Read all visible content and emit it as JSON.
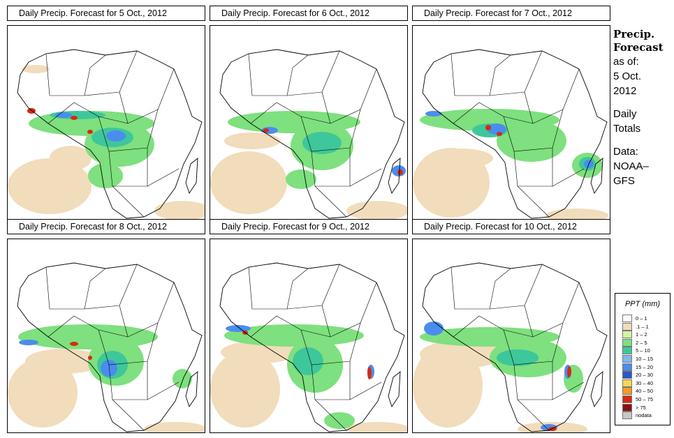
{
  "panels": [
    {
      "title": "Daily Precip. Forecast for  5 Oct., 2012"
    },
    {
      "title": "Daily Precip. Forecast for  6 Oct., 2012"
    },
    {
      "title": "Daily Precip. Forecast for  7 Oct., 2012"
    },
    {
      "title": "Daily Precip. Forecast for  8 Oct., 2012"
    },
    {
      "title": "Daily Precip. Forecast for  9 Oct., 2012"
    },
    {
      "title": "Daily Precip. Forecast for  10 Oct., 2012"
    }
  ],
  "sidebar": {
    "title1": "Precip.",
    "title2": "Forecast",
    "asof": "as of:",
    "date1": "5 Oct.",
    "date2": "2012",
    "daily1": "Daily",
    "daily2": "Totals",
    "data1": "Data:",
    "data2": "NOAA–",
    "data3": "GFS"
  },
  "legend": {
    "title": "PPT (mm)",
    "items": [
      {
        "label": "0 – 1",
        "color": "#fcfcfc"
      },
      {
        "label": ".1 – 1",
        "color": "#f1dcbb"
      },
      {
        "label": "1 – 2",
        "color": "#d4f5a3"
      },
      {
        "label": "2 – 5",
        "color": "#7ee07e"
      },
      {
        "label": "5 – 10",
        "color": "#3ec79a"
      },
      {
        "label": "10 – 15",
        "color": "#7fb7f2"
      },
      {
        "label": "15 – 20",
        "color": "#4a8ded"
      },
      {
        "label": "20 – 30",
        "color": "#2a55cc"
      },
      {
        "label": "30 – 40",
        "color": "#f5d65a"
      },
      {
        "label": "40 – 50",
        "color": "#f59b23"
      },
      {
        "label": "50 – 75",
        "color": "#d62a12"
      },
      {
        "label": "> 75",
        "color": "#8a1010"
      },
      {
        "label": "nodata",
        "color": "#c8c8c8"
      }
    ]
  },
  "colors": {
    "land_dry": "#f1dcbb",
    "light_green": "#7ee07e",
    "teal": "#3ec79a",
    "blue": "#4a8ded",
    "dark_blue": "#2a55cc",
    "red": "#d62a12",
    "orange": "#f59b23"
  }
}
